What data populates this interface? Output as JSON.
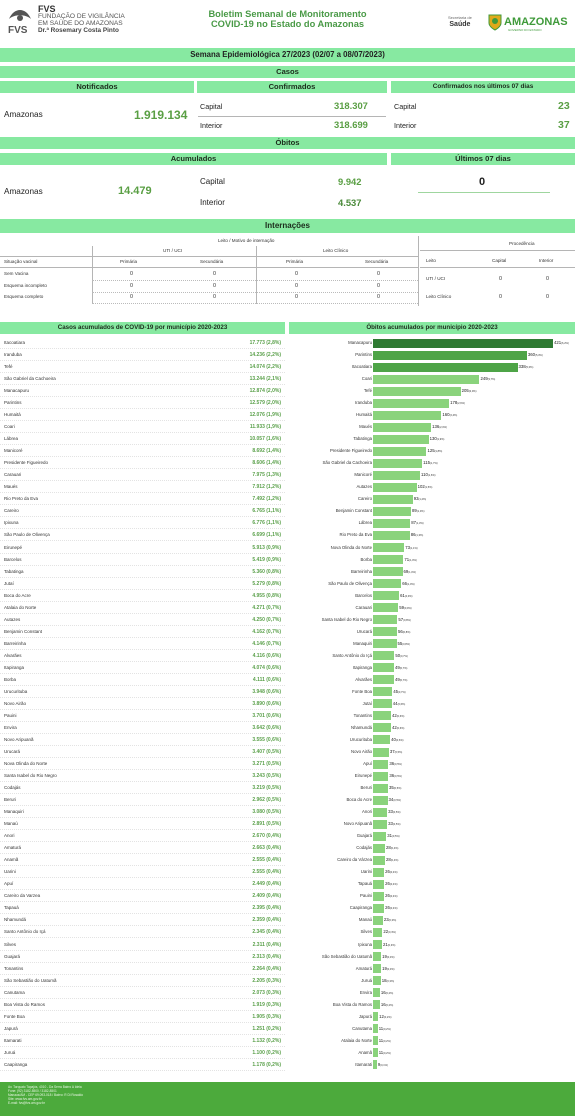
{
  "header": {
    "fvs_name": "FVS",
    "fvs_line1": "FUNDAÇÃO DE VIGILÂNCIA",
    "fvs_line2": "EM SAÚDE DO AMAZONAS",
    "fvs_line3": "Dr.ª Rosemary Costa Pinto",
    "title_line1": "Boletim Semanal de Monitoramento",
    "title_line2": "COVID-19 no Estado do Amazonas",
    "saude_small": "Secretaria de",
    "saude": "Saúde",
    "amazonas": "AMAZONAS",
    "amazonas_sub": "GOVERNO DO ESTADO"
  },
  "week": "Semana Epidemiológica 27/2023 (02/07 a 08/07/2023)",
  "cases": {
    "section": "Casos",
    "notified_header": "Notificados",
    "confirmed_header": "Confirmados",
    "last7_header": "Confirmados nos últimos 07 dias",
    "region": "Amazonas",
    "notified": "1.919.134",
    "capital_label": "Capital",
    "interior_label": "Interior",
    "capital": "318.307",
    "interior": "318.699",
    "last7_capital": "23",
    "last7_interior": "37"
  },
  "deaths": {
    "section": "Óbitos",
    "accum_header": "Acumulados",
    "last7_header": "Últimos 07 dias",
    "region": "Amazonas",
    "total": "14.479",
    "capital_label": "Capital",
    "interior_label": "Interior",
    "capital": "9.942",
    "interior": "4.537",
    "last7": "0"
  },
  "hosp": {
    "section": "Internações",
    "bed_title": "Leito / Motivo de internação",
    "uti": "UTI / UCI",
    "clinico": "Leito Clínico",
    "vacinal": "Situação vacinal",
    "primaria": "Primária",
    "secundaria": "Secundária",
    "rows": [
      {
        "label": "Sem Vacina",
        "v": [
          "0",
          "0",
          "0",
          "0"
        ]
      },
      {
        "label": "Esquema incompleto",
        "v": [
          "0",
          "0",
          "0",
          "0"
        ]
      },
      {
        "label": "Esquema completo",
        "v": [
          "0",
          "0",
          "0",
          "0"
        ]
      }
    ],
    "proc_title": "Procedência",
    "leito": "Leito",
    "capital": "Capital",
    "interior": "Interior",
    "proc_rows": [
      {
        "label": "UTI / UCI",
        "v": [
          "0",
          "0"
        ]
      },
      {
        "label": "Leito Clínico",
        "v": [
          "0",
          "0"
        ]
      }
    ]
  },
  "left_title": "Casos acumulados de COVID-19 por município 2020-2023",
  "right_title": "Óbitos acumulados por município 2020-2023",
  "cases_by_city": [
    [
      "Itacoatiara",
      "17.773 (2,8%)"
    ],
    [
      "Iranduba",
      "14.236 (2,2%)"
    ],
    [
      "Tefé",
      "14.074 (2,2%)"
    ],
    [
      "São Gabriel da Cachoeira",
      "13.244 (2,1%)"
    ],
    [
      "Manacapuru",
      "12.874 (2,0%)"
    ],
    [
      "Parintins",
      "12.579 (2,0%)"
    ],
    [
      "Humaitá",
      "12.076 (1,9%)"
    ],
    [
      "Coari",
      "11.933 (1,9%)"
    ],
    [
      "Lábrea",
      "10.057 (1,6%)"
    ],
    [
      "Manicoré",
      "8.692 (1,4%)"
    ],
    [
      "Presidente Figueiredo",
      "8.606 (1,4%)"
    ],
    [
      "Carauari",
      "7.975 (1,3%)"
    ],
    [
      "Maués",
      "7.912 (1,2%)"
    ],
    [
      "Rio Preto da Eva",
      "7.492 (1,2%)"
    ],
    [
      "Careiro",
      "6.765 (1,1%)"
    ],
    [
      "Ipixuna",
      "6.776 (1,1%)"
    ],
    [
      "São Paulo de Olivença",
      "6.699 (1,1%)"
    ],
    [
      "Eirunepé",
      "5.913 (0,9%)"
    ],
    [
      "Barcelos",
      "5.419 (0,9%)"
    ],
    [
      "Tabatinga",
      "5.360 (0,8%)"
    ],
    [
      "Jutaí",
      "5.279 (0,8%)"
    ],
    [
      "Boca do Acre",
      "4.955 (0,8%)"
    ],
    [
      "Atalaia do Norte",
      "4.271 (0,7%)"
    ],
    [
      "Autazes",
      "4.250 (0,7%)"
    ],
    [
      "Benjamin Constant",
      "4.162 (0,7%)"
    ],
    [
      "Barreirinha",
      "4.146 (0,7%)"
    ],
    [
      "Alvarães",
      "4.116 (0,6%)"
    ],
    [
      "Itapiranga",
      "4.074 (0,6%)"
    ],
    [
      "Borba",
      "4.111 (0,6%)"
    ],
    [
      "Urucurituba",
      "3.948 (0,6%)"
    ],
    [
      "Novo Airão",
      "3.890 (0,6%)"
    ],
    [
      "Pauini",
      "3.701 (0,6%)"
    ],
    [
      "Envira",
      "3.642 (0,6%)"
    ],
    [
      "Novo Aripuanã",
      "3.555 (0,6%)"
    ],
    [
      "Urucará",
      "3.407 (0,5%)"
    ],
    [
      "Nova Olinda do Norte",
      "3.271 (0,5%)"
    ],
    [
      "Santa Isabel do Rio Negro",
      "3.243 (0,5%)"
    ],
    [
      "Codajás",
      "3.219 (0,5%)"
    ],
    [
      "Beruri",
      "2.962 (0,5%)"
    ],
    [
      "Manaquiri",
      "3.080 (0,5%)"
    ],
    [
      "Manaú",
      "2.891 (0,5%)"
    ],
    [
      "Anori",
      "2.670 (0,4%)"
    ],
    [
      "Amaturá",
      "2.663 (0,4%)"
    ],
    [
      "Anamã",
      "2.555 (0,4%)"
    ],
    [
      "Uarini",
      "2.555 (0,4%)"
    ],
    [
      "Apuí",
      "2.449 (0,4%)"
    ],
    [
      "Careiro da Varzea",
      "2.409 (0,4%)"
    ],
    [
      "Tapauá",
      "2.395 (0,4%)"
    ],
    [
      "Nhamundá",
      "2.359 (0,4%)"
    ],
    [
      "Santo Antônio do Içá",
      "2.345 (0,4%)"
    ],
    [
      "Silves",
      "2.311 (0,4%)"
    ],
    [
      "Guajará",
      "2.313 (0,4%)"
    ],
    [
      "Tonantins",
      "2.264 (0,4%)"
    ],
    [
      "São Sebastião do Uatumã",
      "2.205 (0,3%)"
    ],
    [
      "Canutama",
      "2.073 (0,3%)"
    ],
    [
      "Boa Vista do Ramos",
      "1.919 (0,3%)"
    ],
    [
      "Fonte Boa",
      "1.905 (0,3%)"
    ],
    [
      "Japurá",
      "1.251 (0,2%)"
    ],
    [
      "Itamarati",
      "1.132 (0,2%)"
    ],
    [
      "Juruá",
      "1.100 (0,2%)"
    ],
    [
      "Caapiranga",
      "1.178 (0,2%)"
    ]
  ],
  "chart_data": {
    "type": "bar",
    "orientation": "horizontal",
    "title": "Óbitos acumulados por município 2020-2023",
    "categories": [
      "Manacapuru",
      "Parintins",
      "Itacoatiara",
      "Coari",
      "Tefé",
      "Iranduba",
      "Humaitá",
      "Maués",
      "Tabatinga",
      "Presidente Figueiredo",
      "São Gabriel da Cachoeira",
      "Manicoré",
      "Autazes",
      "Careiro",
      "Benjamin Constant",
      "Lábrea",
      "Rio Preto da Eva",
      "Nova Olinda do Norte",
      "Borba",
      "Barreirinha",
      "São Paulo de Olivença",
      "Barcelos",
      "Carauari",
      "Santa Isabel do Rio Negro",
      "Urucará",
      "Manaquiri",
      "Santo Antônio do Içá",
      "Itapiranga",
      "Alvarães",
      "Fonte Boa",
      "Jutaí",
      "Tonantins",
      "Nhamundá",
      "Urucurituba",
      "Novo Airão",
      "Apuí",
      "Eirunepé",
      "Beruri",
      "Boca do Acre",
      "Anori",
      "Novo Aripuanã",
      "Guajará",
      "Codajás",
      "Careiro da Várzea",
      "Uarini",
      "Tapauá",
      "Pauini",
      "Caapiranga",
      "Manaú",
      "Silves",
      "Ipixuna",
      "São Sebastião do Uatumã",
      "Amaturá",
      "Juruá",
      "Envira",
      "Boa Vista do Ramos",
      "Japurá",
      "Canutama",
      "Atalaia do Norte",
      "Anamã",
      "Itamarati"
    ],
    "values": [
      421,
      360,
      338,
      249,
      205,
      178,
      160,
      136,
      130,
      125,
      115,
      110,
      102,
      93,
      89,
      87,
      86,
      73,
      71,
      69,
      66,
      61,
      59,
      57,
      56,
      55,
      50,
      49,
      49,
      45,
      44,
      42,
      42,
      40,
      37,
      36,
      36,
      35,
      34,
      33,
      33,
      31,
      28,
      28,
      26,
      26,
      26,
      26,
      23,
      22,
      21,
      19,
      19,
      18,
      16,
      16,
      12,
      11,
      11,
      11,
      9
    ],
    "labels": [
      "421(6,2%)",
      "360(5,3%)",
      "338(5,0%)",
      "249(3,7%)",
      "205(3,0%)",
      "178(2,6%)",
      "160(2,4%)",
      "136(2,0%)",
      "130(1,9%)",
      "125(1,8%)",
      "115(1,7%)",
      "110(1,6%)",
      "102(1,5%)",
      "93(1,4%)",
      "89(1,3%)",
      "87(1,3%)",
      "86(1,3%)",
      "73(1,1%)",
      "71(1,0%)",
      "69(1,0%)",
      "66(1,0%)",
      "61(0,9%)",
      "59(0,9%)",
      "57(0,8%)",
      "56(0,8%)",
      "55(0,8%)",
      "50(0,7%)",
      "49(0,7%)",
      "49(0,7%)",
      "45(0,7%)",
      "44(0,6%)",
      "42(0,6%)",
      "42(0,6%)",
      "40(0,6%)",
      "37(0,5%)",
      "36(0,5%)",
      "36(0,5%)",
      "35(0,5%)",
      "34(0,5%)",
      "33(0,5%)",
      "33(0,5%)",
      "31(0,5%)",
      "28(0,4%)",
      "28(0,4%)",
      "26(0,4%)",
      "26(0,4%)",
      "26(0,4%)",
      "26(0,4%)",
      "23(0,3%)",
      "22(0,3%)",
      "21(0,3%)",
      "19(0,3%)",
      "19(0,3%)",
      "18(0,3%)",
      "16(0,2%)",
      "16(0,2%)",
      "12(0,2%)",
      "11(0,2%)",
      "11(0,2%)",
      "11(0,2%)",
      "9(0,1%)"
    ],
    "colors": {
      "top": "#2e7a32",
      "mid": "#4ea447",
      "rest": "#8ad37c"
    }
  },
  "footer": {
    "lines": [
      "Av. Torquato Tapajós, 4010 - Da Serra Bairro A Ideia",
      "Fone: (92) 3182-8500 / 3182-8501",
      "Manaus/AM - CEP 69.093-018 / Bairro: R Di Rosaldo",
      "Site: www.fvs.am.gov.br",
      "E-mail: fvs@fvs.am.gov.br"
    ]
  }
}
